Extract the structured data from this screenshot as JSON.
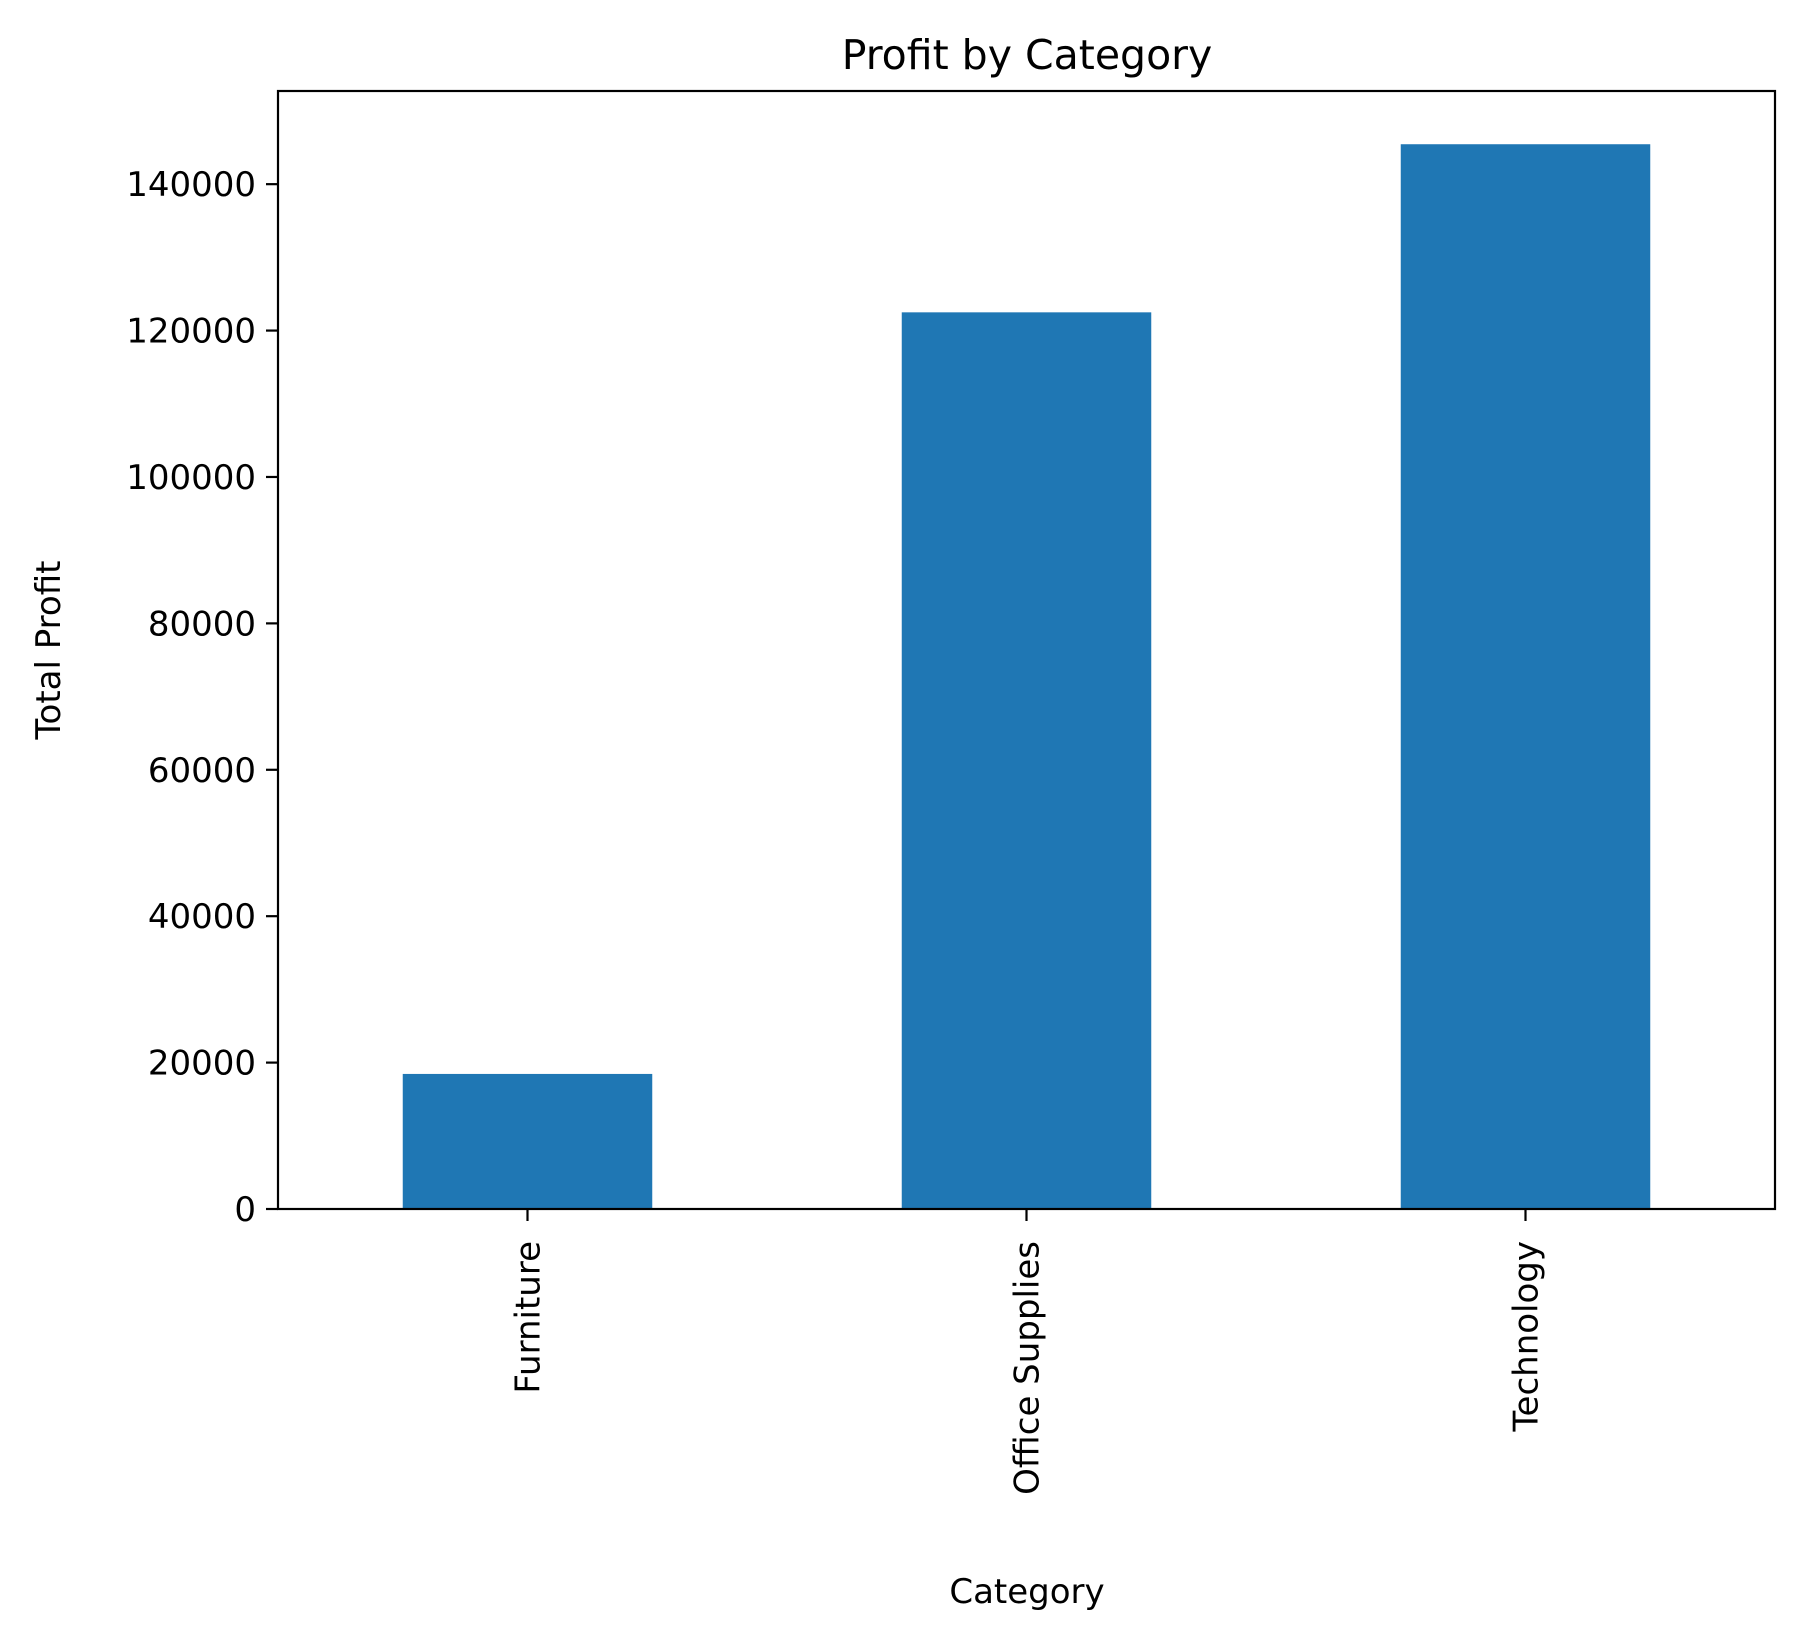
{
  "chart_data": {
    "type": "bar",
    "title": "Profit by Category",
    "xlabel": "Category",
    "ylabel": "Total Profit",
    "categories": [
      "Furniture",
      "Office Supplies",
      "Technology"
    ],
    "values": [
      18451,
      122491,
      145455
    ],
    "ylim": [
      0,
      152727
    ],
    "yticks": [
      0,
      20000,
      40000,
      60000,
      80000,
      100000,
      120000,
      140000
    ],
    "ytick_labels": [
      "0",
      "20000",
      "40000",
      "60000",
      "80000",
      "100000",
      "120000",
      "140000"
    ],
    "bar_color": "#1f77b4",
    "grid": false,
    "legend": false
  }
}
